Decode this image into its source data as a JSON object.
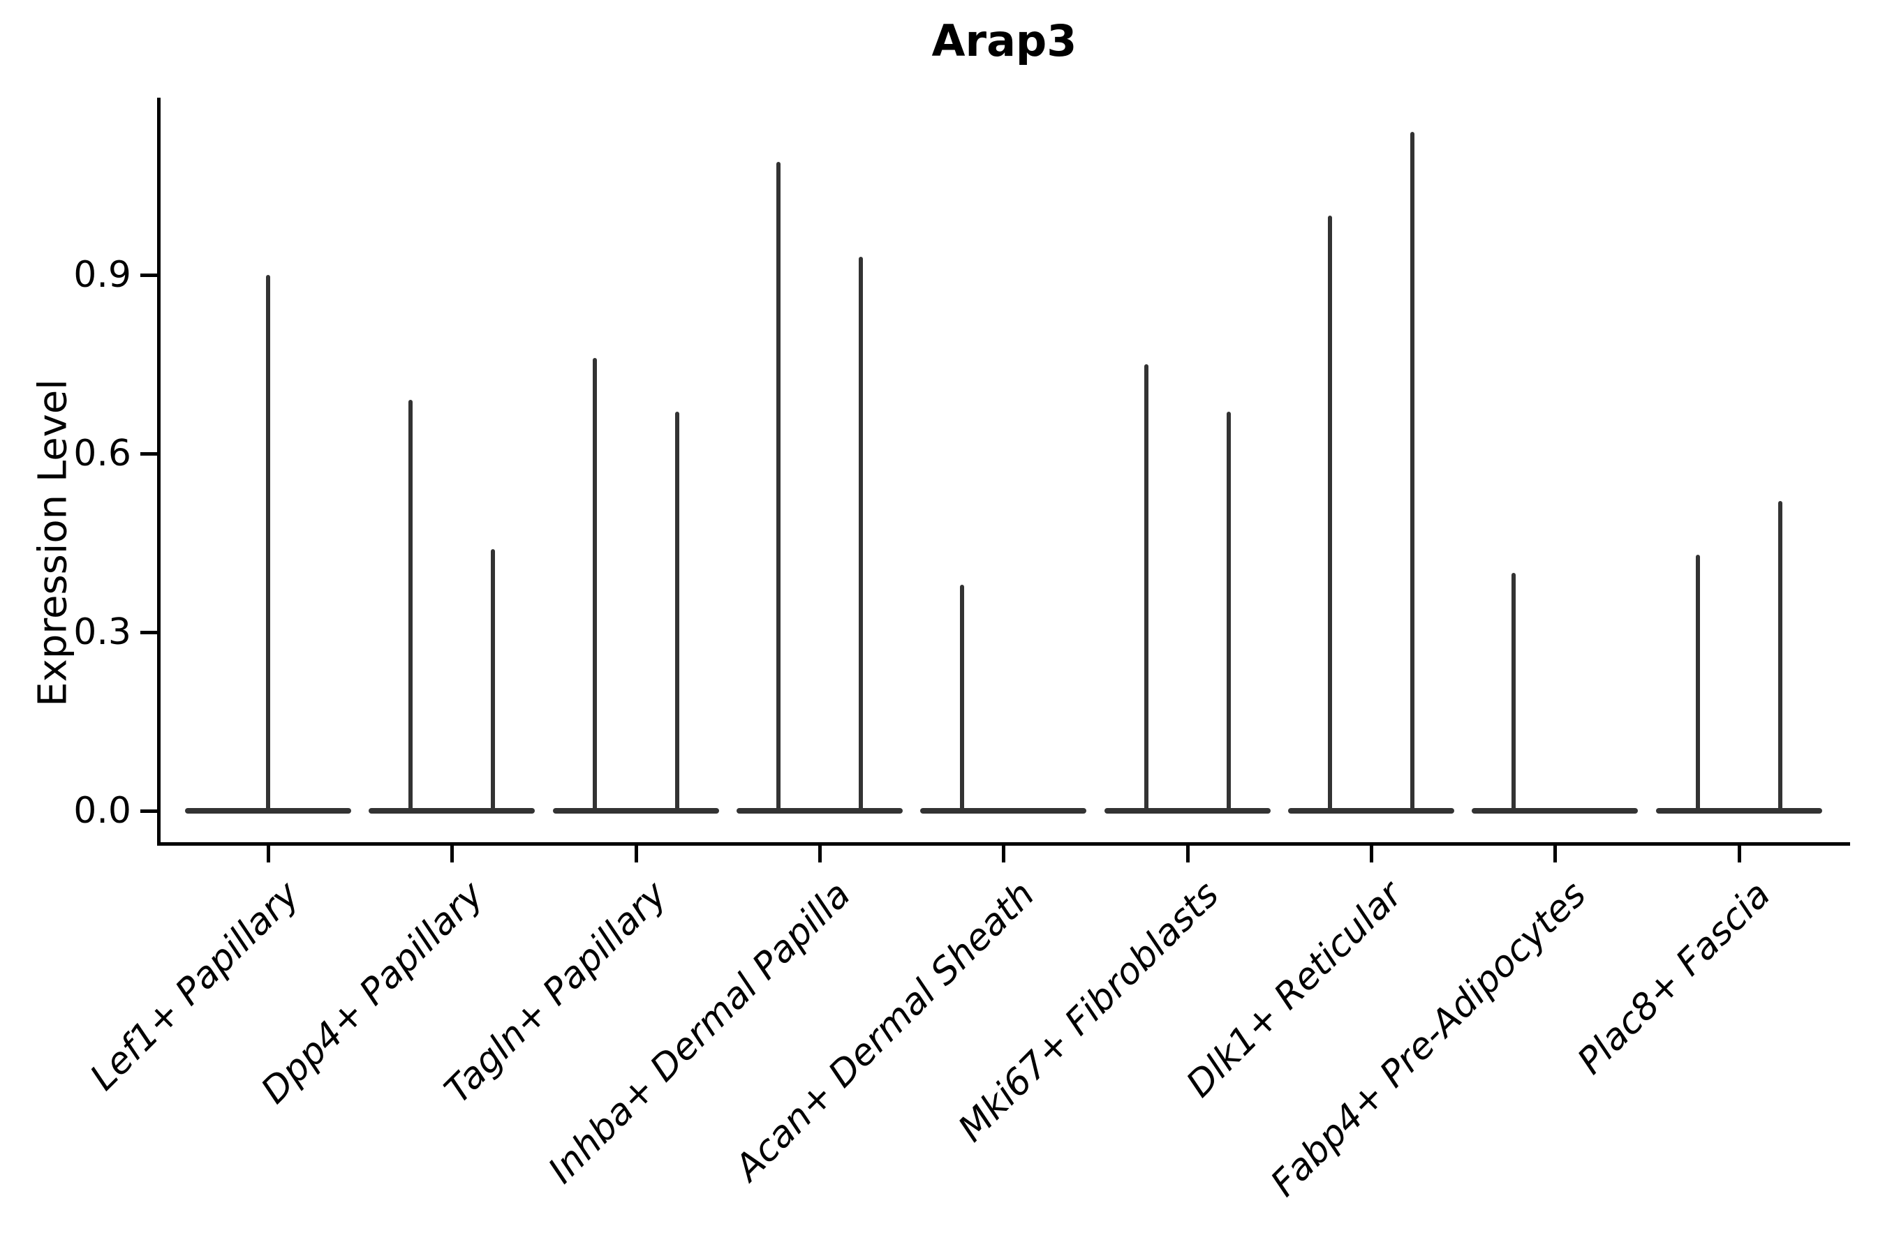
{
  "chart_data": {
    "type": "violin",
    "title": "Arap3",
    "ylabel": "Expression Level",
    "xlabel": "",
    "ylim": [
      0,
      1.2
    ],
    "grid": false,
    "legend": "none",
    "yticks": [
      {
        "label": "0.0",
        "value": 0.0
      },
      {
        "label": "0.3",
        "value": 0.3
      },
      {
        "label": "0.6",
        "value": 0.6
      },
      {
        "label": "0.9",
        "value": 0.9
      }
    ],
    "categories": [
      {
        "label": "Lef1+ Papillary",
        "violins": [
          {
            "pos": "center",
            "max": 0.9
          }
        ]
      },
      {
        "label": "Dpp4+ Papillary",
        "violins": [
          {
            "pos": "left",
            "max": 0.69
          },
          {
            "pos": "right",
            "max": 0.44
          }
        ]
      },
      {
        "label": "Tagln+ Papillary",
        "violins": [
          {
            "pos": "left",
            "max": 0.76
          },
          {
            "pos": "right",
            "max": 0.67
          }
        ]
      },
      {
        "label": "Inhba+ Dermal Papilla",
        "violins": [
          {
            "pos": "left",
            "max": 1.09
          },
          {
            "pos": "right",
            "max": 0.93
          }
        ]
      },
      {
        "label": "Acan+ Dermal Sheath",
        "violins": [
          {
            "pos": "left",
            "max": 0.38
          }
        ]
      },
      {
        "label": "Mki67+ Fibroblasts",
        "violins": [
          {
            "pos": "left",
            "max": 0.75
          },
          {
            "pos": "right",
            "max": 0.67
          }
        ]
      },
      {
        "label": "Dlk1+ Reticular",
        "violins": [
          {
            "pos": "left",
            "max": 1.0
          },
          {
            "pos": "right",
            "max": 1.14
          }
        ]
      },
      {
        "label": "Fabp4+ Pre-Adipocytes",
        "violins": [
          {
            "pos": "left",
            "max": 0.4
          }
        ]
      },
      {
        "label": "Plac8+ Fascia",
        "violins": [
          {
            "pos": "left",
            "max": 0.43
          },
          {
            "pos": "right",
            "max": 0.52
          }
        ]
      }
    ],
    "colors": {
      "violin": "#333333",
      "axis": "#000000",
      "text": "#000000"
    }
  }
}
